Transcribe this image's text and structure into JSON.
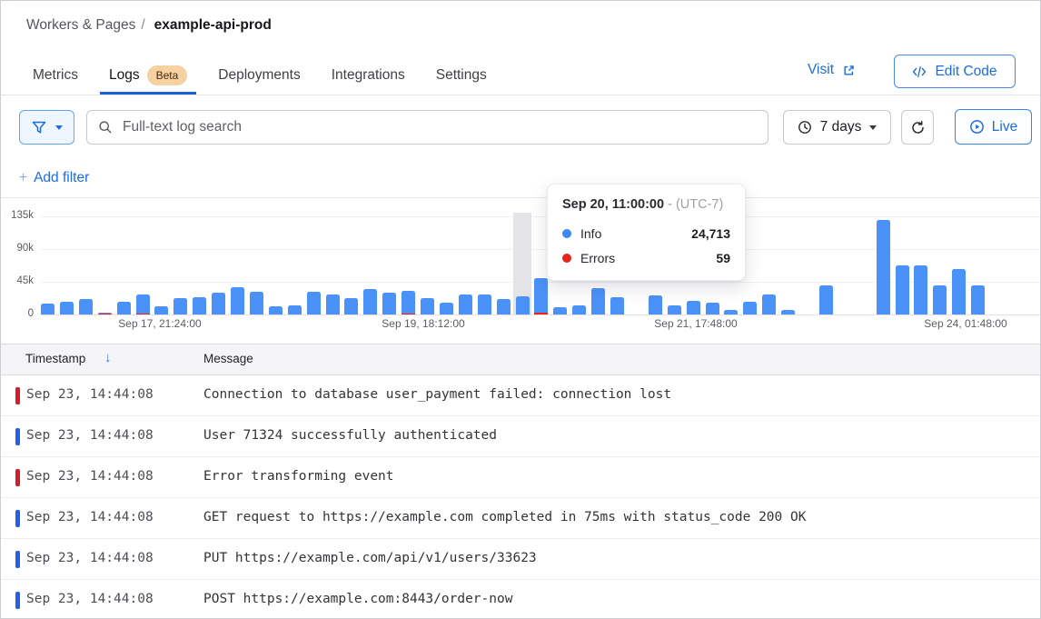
{
  "breadcrumb": {
    "parent": "Workers & Pages",
    "separator": "/",
    "current": "example-api-prod"
  },
  "tabs": [
    {
      "label": "Metrics",
      "active": false
    },
    {
      "label": "Logs",
      "badge": "Beta",
      "active": true
    },
    {
      "label": "Deployments",
      "active": false
    },
    {
      "label": "Integrations",
      "active": false
    },
    {
      "label": "Settings",
      "active": false
    }
  ],
  "header_actions": {
    "visit_label": "Visit",
    "edit_code_label": "Edit Code"
  },
  "filter_bar": {
    "search_placeholder": "Full-text log search",
    "time_range_label": "7 days",
    "live_label": "Live",
    "add_filter_plus": "+",
    "add_filter_label": "Add filter"
  },
  "chart_data": {
    "type": "bar",
    "stacked": true,
    "unit": "log events (thousands)",
    "series_names": [
      "Info",
      "Errors"
    ],
    "ylim": [
      0,
      135
    ],
    "grid": true,
    "yticks": [
      {
        "label": "135k",
        "value": 135
      },
      {
        "label": "90k",
        "value": 90
      },
      {
        "label": "45k",
        "value": 45
      },
      {
        "label": "0",
        "value": 0
      }
    ],
    "xticks": [
      {
        "label": "Sep 17, 21:24:00",
        "center": 175
      },
      {
        "label": "Sep 19, 18:12:00",
        "center": 465
      },
      {
        "label": "Sep 21, 17:48:00",
        "center": 765
      },
      {
        "label": "Sep 24, 01:48:00",
        "center": 1062
      }
    ],
    "bars_info_errors_thousands": [
      [
        15,
        0
      ],
      [
        17,
        0
      ],
      [
        21,
        0
      ],
      [
        2,
        1
      ],
      [
        18,
        0
      ],
      [
        26,
        1
      ],
      [
        11,
        0
      ],
      [
        22,
        0
      ],
      [
        24,
        0
      ],
      [
        30,
        0
      ],
      [
        37,
        0
      ],
      [
        31,
        0
      ],
      [
        11,
        0
      ],
      [
        13,
        0
      ],
      [
        31,
        0
      ],
      [
        28,
        0
      ],
      [
        23,
        0
      ],
      [
        35,
        0
      ],
      [
        30,
        0
      ],
      [
        32,
        1
      ],
      [
        23,
        0
      ],
      [
        16,
        0
      ],
      [
        28,
        0
      ],
      [
        27,
        0
      ],
      [
        21,
        0
      ],
      [
        24.713,
        0.059
      ],
      [
        47,
        3
      ],
      [
        10,
        0
      ],
      [
        13,
        0
      ],
      [
        36,
        0
      ],
      [
        24,
        0
      ],
      [
        0,
        0
      ],
      [
        26,
        0
      ],
      [
        12,
        0
      ],
      [
        19,
        0
      ],
      [
        16,
        0
      ],
      [
        6,
        0
      ],
      [
        17,
        0
      ],
      [
        27,
        0
      ],
      [
        6,
        0
      ],
      [
        0,
        0
      ],
      [
        40,
        0
      ],
      [
        0,
        0
      ],
      [
        0,
        0
      ],
      [
        130,
        0
      ],
      [
        67,
        0
      ],
      [
        67,
        0
      ],
      [
        40,
        0
      ],
      [
        62,
        0
      ],
      [
        40,
        0
      ]
    ],
    "hovered_index": 25,
    "tooltip": {
      "title": "Sep 20, 11:00:00",
      "dash": "-",
      "timezone": "(UTC-7)",
      "rows": [
        {
          "label": "Info",
          "value": "24,713",
          "color": "#3f87f5"
        },
        {
          "label": "Errors",
          "value": "59",
          "color": "#e8251c"
        }
      ]
    }
  },
  "table": {
    "columns": [
      {
        "label": "Timestamp",
        "sort": "desc"
      },
      {
        "label": "Message"
      }
    ],
    "sort_icon": "↓",
    "rows": [
      {
        "level": "error",
        "timestamp": "Sep 23, 14:44:08",
        "message": "Connection to database user_payment failed: connection lost"
      },
      {
        "level": "info",
        "timestamp": "Sep 23, 14:44:08",
        "message": "User 71324 successfully authenticated"
      },
      {
        "level": "error",
        "timestamp": "Sep 23, 14:44:08",
        "message": "Error transforming event"
      },
      {
        "level": "info",
        "timestamp": "Sep 23, 14:44:08",
        "message": "GET request to https://example.com completed in 75ms with status_code 200 OK"
      },
      {
        "level": "info",
        "timestamp": "Sep 23, 14:44:08",
        "message": "PUT https://example.com/api/v1/users/33623"
      },
      {
        "level": "info",
        "timestamp": "Sep 23, 14:44:08",
        "message": "POST https://example.com:8443/order-now"
      }
    ]
  },
  "colors": {
    "brand_blue": "#1d6ce0",
    "bar_info": "#4b92f8",
    "bar_error": "#e8251c",
    "row_indicator_info": "#2360e6",
    "row_indicator_error": "#d21e28",
    "beta_badge_bg": "#f8d1a3"
  }
}
